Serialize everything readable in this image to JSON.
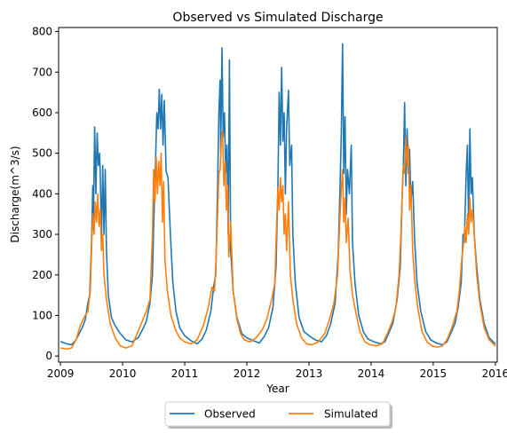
{
  "colors": {
    "observed": "#1f77b4",
    "simulated": "#ff7f0e",
    "axes": "#000000",
    "background": "#ffffff"
  },
  "chart_data": {
    "type": "line",
    "title": "Observed vs Simulated Discharge",
    "xlabel": "Year",
    "ylabel": "Discharge(m^3/s)",
    "xlim": [
      2008.97,
      2016.03
    ],
    "ylim": [
      -15,
      810
    ],
    "xticks": [
      2009,
      2010,
      2011,
      2012,
      2013,
      2014,
      2015,
      2016
    ],
    "yticks": [
      0,
      100,
      200,
      300,
      400,
      500,
      600,
      700,
      800
    ],
    "grid": false,
    "legend": {
      "placement": "bottom-center-outside",
      "columns": 2
    },
    "series": [
      {
        "name": "Observed",
        "color": "#1f77b4",
        "points": [
          [
            2009.0,
            36
          ],
          [
            2009.1,
            30
          ],
          [
            2009.18,
            28
          ],
          [
            2009.25,
            40
          ],
          [
            2009.3,
            55
          ],
          [
            2009.35,
            70
          ],
          [
            2009.4,
            90
          ],
          [
            2009.44,
            130
          ],
          [
            2009.47,
            150
          ],
          [
            2009.5,
            280
          ],
          [
            2009.52,
            420
          ],
          [
            2009.53,
            330
          ],
          [
            2009.55,
            565
          ],
          [
            2009.57,
            400
          ],
          [
            2009.59,
            550
          ],
          [
            2009.61,
            470
          ],
          [
            2009.63,
            500
          ],
          [
            2009.64,
            450
          ],
          [
            2009.66,
            290
          ],
          [
            2009.68,
            470
          ],
          [
            2009.7,
            300
          ],
          [
            2009.72,
            460
          ],
          [
            2009.74,
            260
          ],
          [
            2009.77,
            150
          ],
          [
            2009.82,
            95
          ],
          [
            2009.88,
            75
          ],
          [
            2009.95,
            58
          ],
          [
            2010.05,
            40
          ],
          [
            2010.15,
            35
          ],
          [
            2010.25,
            45
          ],
          [
            2010.32,
            65
          ],
          [
            2010.38,
            85
          ],
          [
            2010.44,
            130
          ],
          [
            2010.48,
            200
          ],
          [
            2010.51,
            380
          ],
          [
            2010.53,
            480
          ],
          [
            2010.55,
            600
          ],
          [
            2010.57,
            560
          ],
          [
            2010.59,
            658
          ],
          [
            2010.61,
            560
          ],
          [
            2010.63,
            645
          ],
          [
            2010.65,
            520
          ],
          [
            2010.67,
            630
          ],
          [
            2010.7,
            455
          ],
          [
            2010.73,
            440
          ],
          [
            2010.77,
            300
          ],
          [
            2010.81,
            180
          ],
          [
            2010.86,
            110
          ],
          [
            2010.92,
            70
          ],
          [
            2011.0,
            50
          ],
          [
            2011.1,
            38
          ],
          [
            2011.2,
            30
          ],
          [
            2011.28,
            42
          ],
          [
            2011.35,
            65
          ],
          [
            2011.42,
            110
          ],
          [
            2011.47,
            175
          ],
          [
            2011.5,
            200
          ],
          [
            2011.53,
            420
          ],
          [
            2011.55,
            600
          ],
          [
            2011.57,
            680
          ],
          [
            2011.58,
            500
          ],
          [
            2011.6,
            760
          ],
          [
            2011.62,
            540
          ],
          [
            2011.64,
            600
          ],
          [
            2011.66,
            450
          ],
          [
            2011.68,
            520
          ],
          [
            2011.7,
            300
          ],
          [
            2011.72,
            730
          ],
          [
            2011.74,
            260
          ],
          [
            2011.78,
            160
          ],
          [
            2011.84,
            95
          ],
          [
            2011.92,
            55
          ],
          [
            2012.0,
            45
          ],
          [
            2012.1,
            38
          ],
          [
            2012.2,
            32
          ],
          [
            2012.28,
            48
          ],
          [
            2012.35,
            70
          ],
          [
            2012.42,
            120
          ],
          [
            2012.47,
            220
          ],
          [
            2012.5,
            420
          ],
          [
            2012.52,
            650
          ],
          [
            2012.54,
            520
          ],
          [
            2012.56,
            712
          ],
          [
            2012.58,
            530
          ],
          [
            2012.6,
            600
          ],
          [
            2012.62,
            400
          ],
          [
            2012.64,
            560
          ],
          [
            2012.67,
            655
          ],
          [
            2012.69,
            470
          ],
          [
            2012.72,
            520
          ],
          [
            2012.74,
            300
          ],
          [
            2012.78,
            180
          ],
          [
            2012.84,
            95
          ],
          [
            2012.92,
            60
          ],
          [
            2013.0,
            50
          ],
          [
            2013.1,
            40
          ],
          [
            2013.2,
            35
          ],
          [
            2013.28,
            50
          ],
          [
            2013.35,
            80
          ],
          [
            2013.42,
            130
          ],
          [
            2013.47,
            250
          ],
          [
            2013.5,
            420
          ],
          [
            2013.52,
            550
          ],
          [
            2013.54,
            770
          ],
          [
            2013.56,
            450
          ],
          [
            2013.58,
            590
          ],
          [
            2013.6,
            350
          ],
          [
            2013.62,
            460
          ],
          [
            2013.65,
            400
          ],
          [
            2013.68,
            520
          ],
          [
            2013.7,
            280
          ],
          [
            2013.74,
            180
          ],
          [
            2013.8,
            100
          ],
          [
            2013.88,
            58
          ],
          [
            2013.95,
            42
          ],
          [
            2014.05,
            35
          ],
          [
            2014.15,
            30
          ],
          [
            2014.22,
            35
          ],
          [
            2014.28,
            55
          ],
          [
            2014.35,
            80
          ],
          [
            2014.42,
            140
          ],
          [
            2014.47,
            220
          ],
          [
            2014.5,
            390
          ],
          [
            2014.52,
            470
          ],
          [
            2014.54,
            625
          ],
          [
            2014.56,
            420
          ],
          [
            2014.58,
            560
          ],
          [
            2014.6,
            450
          ],
          [
            2014.62,
            510
          ],
          [
            2014.64,
            380
          ],
          [
            2014.67,
            430
          ],
          [
            2014.7,
            290
          ],
          [
            2014.74,
            180
          ],
          [
            2014.8,
            110
          ],
          [
            2014.88,
            60
          ],
          [
            2014.96,
            40
          ],
          [
            2015.05,
            32
          ],
          [
            2015.15,
            28
          ],
          [
            2015.22,
            35
          ],
          [
            2015.28,
            55
          ],
          [
            2015.35,
            80
          ],
          [
            2015.4,
            120
          ],
          [
            2015.45,
            180
          ],
          [
            2015.48,
            300
          ],
          [
            2015.5,
            280
          ],
          [
            2015.53,
            450
          ],
          [
            2015.55,
            520
          ],
          [
            2015.57,
            320
          ],
          [
            2015.59,
            560
          ],
          [
            2015.61,
            400
          ],
          [
            2015.63,
            440
          ],
          [
            2015.66,
            300
          ],
          [
            2015.7,
            220
          ],
          [
            2015.75,
            140
          ],
          [
            2015.82,
            80
          ],
          [
            2015.9,
            45
          ],
          [
            2016.0,
            30
          ]
        ]
      },
      {
        "name": "Simulated",
        "color": "#ff7f0e",
        "points": [
          [
            2009.0,
            20
          ],
          [
            2009.1,
            17
          ],
          [
            2009.18,
            20
          ],
          [
            2009.25,
            40
          ],
          [
            2009.32,
            75
          ],
          [
            2009.38,
            95
          ],
          [
            2009.44,
            110
          ],
          [
            2009.48,
            160
          ],
          [
            2009.5,
            260
          ],
          [
            2009.52,
            350
          ],
          [
            2009.54,
            300
          ],
          [
            2009.56,
            380
          ],
          [
            2009.58,
            330
          ],
          [
            2009.6,
            400
          ],
          [
            2009.62,
            320
          ],
          [
            2009.64,
            360
          ],
          [
            2009.66,
            260
          ],
          [
            2009.68,
            300
          ],
          [
            2009.7,
            200
          ],
          [
            2009.74,
            140
          ],
          [
            2009.8,
            80
          ],
          [
            2009.88,
            45
          ],
          [
            2009.96,
            25
          ],
          [
            2010.05,
            20
          ],
          [
            2010.15,
            25
          ],
          [
            2010.22,
            50
          ],
          [
            2010.3,
            80
          ],
          [
            2010.38,
            110
          ],
          [
            2010.44,
            140
          ],
          [
            2010.48,
            300
          ],
          [
            2010.5,
            460
          ],
          [
            2010.52,
            380
          ],
          [
            2010.54,
            490
          ],
          [
            2010.56,
            400
          ],
          [
            2010.58,
            480
          ],
          [
            2010.6,
            420
          ],
          [
            2010.62,
            500
          ],
          [
            2010.64,
            330
          ],
          [
            2010.66,
            430
          ],
          [
            2010.68,
            240
          ],
          [
            2010.72,
            160
          ],
          [
            2010.78,
            100
          ],
          [
            2010.85,
            65
          ],
          [
            2010.92,
            45
          ],
          [
            2011.0,
            35
          ],
          [
            2011.1,
            30
          ],
          [
            2011.2,
            40
          ],
          [
            2011.3,
            75
          ],
          [
            2011.38,
            120
          ],
          [
            2011.44,
            170
          ],
          [
            2011.48,
            160
          ],
          [
            2011.5,
            220
          ],
          [
            2011.53,
            350
          ],
          [
            2011.55,
            450
          ],
          [
            2011.57,
            460
          ],
          [
            2011.59,
            530
          ],
          [
            2011.61,
            555
          ],
          [
            2011.63,
            420
          ],
          [
            2011.65,
            480
          ],
          [
            2011.67,
            360
          ],
          [
            2011.69,
            420
          ],
          [
            2011.71,
            245
          ],
          [
            2011.74,
            330
          ],
          [
            2011.78,
            160
          ],
          [
            2011.84,
            90
          ],
          [
            2011.9,
            55
          ],
          [
            2011.96,
            40
          ],
          [
            2012.05,
            35
          ],
          [
            2012.15,
            45
          ],
          [
            2012.25,
            65
          ],
          [
            2012.32,
            90
          ],
          [
            2012.4,
            140
          ],
          [
            2012.45,
            180
          ],
          [
            2012.48,
            330
          ],
          [
            2012.5,
            415
          ],
          [
            2012.52,
            360
          ],
          [
            2012.54,
            440
          ],
          [
            2012.56,
            380
          ],
          [
            2012.58,
            420
          ],
          [
            2012.6,
            300
          ],
          [
            2012.62,
            350
          ],
          [
            2012.64,
            260
          ],
          [
            2012.67,
            380
          ],
          [
            2012.7,
            200
          ],
          [
            2012.74,
            140
          ],
          [
            2012.8,
            80
          ],
          [
            2012.88,
            45
          ],
          [
            2012.96,
            30
          ],
          [
            2013.05,
            28
          ],
          [
            2013.15,
            35
          ],
          [
            2013.25,
            55
          ],
          [
            2013.33,
            90
          ],
          [
            2013.4,
            130
          ],
          [
            2013.46,
            200
          ],
          [
            2013.5,
            350
          ],
          [
            2013.52,
            410
          ],
          [
            2013.54,
            460
          ],
          [
            2013.56,
            330
          ],
          [
            2013.58,
            390
          ],
          [
            2013.6,
            280
          ],
          [
            2013.63,
            340
          ],
          [
            2013.66,
            210
          ],
          [
            2013.7,
            150
          ],
          [
            2013.75,
            110
          ],
          [
            2013.82,
            60
          ],
          [
            2013.9,
            35
          ],
          [
            2013.98,
            28
          ],
          [
            2014.08,
            25
          ],
          [
            2014.18,
            30
          ],
          [
            2014.26,
            55
          ],
          [
            2014.34,
            85
          ],
          [
            2014.4,
            120
          ],
          [
            2014.45,
            200
          ],
          [
            2014.48,
            300
          ],
          [
            2014.5,
            400
          ],
          [
            2014.52,
            470
          ],
          [
            2014.54,
            450
          ],
          [
            2014.56,
            540
          ],
          [
            2014.58,
            470
          ],
          [
            2014.6,
            520
          ],
          [
            2014.62,
            360
          ],
          [
            2014.64,
            420
          ],
          [
            2014.67,
            260
          ],
          [
            2014.7,
            190
          ],
          [
            2014.75,
            120
          ],
          [
            2014.82,
            60
          ],
          [
            2014.9,
            35
          ],
          [
            2014.98,
            25
          ],
          [
            2015.06,
            22
          ],
          [
            2015.15,
            25
          ],
          [
            2015.22,
            40
          ],
          [
            2015.3,
            70
          ],
          [
            2015.38,
            110
          ],
          [
            2015.42,
            160
          ],
          [
            2015.46,
            240
          ],
          [
            2015.49,
            280
          ],
          [
            2015.51,
            320
          ],
          [
            2015.53,
            280
          ],
          [
            2015.55,
            350
          ],
          [
            2015.57,
            300
          ],
          [
            2015.59,
            390
          ],
          [
            2015.61,
            330
          ],
          [
            2015.63,
            360
          ],
          [
            2015.66,
            300
          ],
          [
            2015.7,
            200
          ],
          [
            2015.75,
            130
          ],
          [
            2015.82,
            70
          ],
          [
            2015.9,
            40
          ],
          [
            2016.0,
            25
          ]
        ]
      }
    ]
  }
}
